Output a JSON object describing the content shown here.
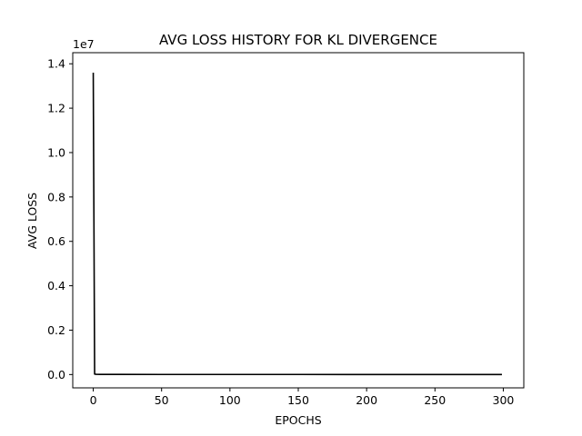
{
  "chart_data": {
    "type": "line",
    "title": "AVG LOSS HISTORY FOR KL DIVERGENCE",
    "xlabel": "EPOCHS",
    "ylabel": "AVG LOSS",
    "y_offset_label": "1e7",
    "xlim": [
      -15,
      315
    ],
    "ylim": [
      -0.06,
      1.45
    ],
    "x_ticks": [
      0,
      50,
      100,
      150,
      200,
      250,
      300
    ],
    "x_tick_labels": [
      "0",
      "50",
      "100",
      "150",
      "200",
      "250",
      "300"
    ],
    "y_ticks": [
      0.0,
      0.2,
      0.4,
      0.6,
      0.8,
      1.0,
      1.2,
      1.4
    ],
    "y_tick_labels": [
      "0.0",
      "0.2",
      "0.4",
      "0.6",
      "0.8",
      "1.0",
      "1.2",
      "1.4"
    ],
    "y_scale_factor": 10000000,
    "grid": false,
    "line_color": "#000000",
    "series": [
      {
        "x": [
          0,
          1,
          2,
          5,
          10,
          20,
          50,
          100,
          150,
          200,
          250,
          299
        ],
        "values": [
          1.36,
          0.002,
          0.001,
          0.0008,
          0.0006,
          0.0005,
          0.0004,
          0.0003,
          0.0003,
          0.0002,
          0.0002,
          0.0002
        ]
      }
    ]
  }
}
